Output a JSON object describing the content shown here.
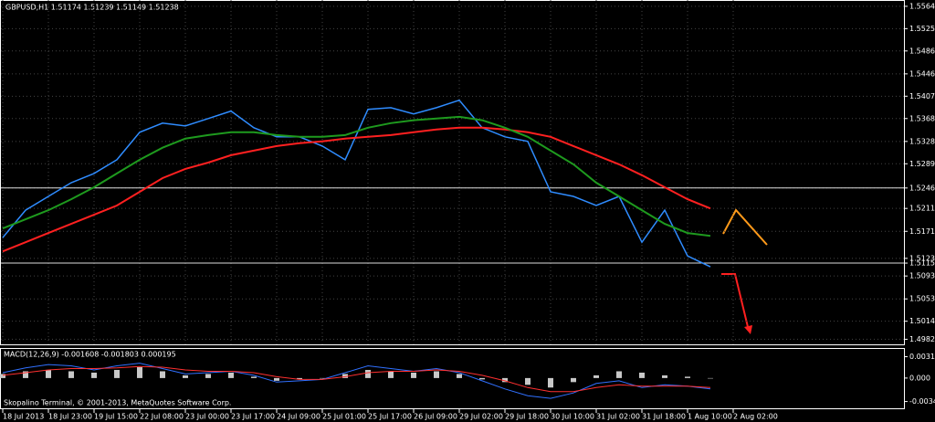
{
  "chart_data": [
    {
      "type": "line",
      "title": "GBPUSD,H1  1.51174 1.51239 1.51149 1.51238",
      "ylim": [
        1.4972,
        1.5575
      ],
      "yticks": [
        {
          "value": 1.5564,
          "label": "1.55640"
        },
        {
          "value": 1.5525,
          "label": "1.55250"
        },
        {
          "value": 1.5486,
          "label": "1.54860"
        },
        {
          "value": 1.5446,
          "label": "1.54460"
        },
        {
          "value": 1.5407,
          "label": "1.54070"
        },
        {
          "value": 1.5368,
          "label": "1.53680"
        },
        {
          "value": 1.5328,
          "label": "1.53280"
        },
        {
          "value": 1.5289,
          "label": "1.52890"
        },
        1.52467,
        {
          "value": 1.5211,
          "label": "1.52110"
        },
        {
          "value": 1.5171,
          "label": "1.51710"
        },
        1.51238,
        1.51155,
        {
          "value": 1.5093,
          "label": "1.50930"
        },
        {
          "value": 1.5053,
          "label": "1.50530"
        },
        {
          "value": 1.5014,
          "label": "1.50140"
        },
        1.49825
      ],
      "levels": [
        1.52467,
        1.51155
      ],
      "grid": true,
      "series": [
        {
          "color": "#2f8cff",
          "values": [
            1.516,
            1.5208,
            1.5232,
            1.5256,
            1.5272,
            1.5296,
            1.5344,
            1.536,
            1.5355,
            1.5368,
            1.5381,
            1.5352,
            1.5336,
            1.5336,
            1.532,
            1.5296,
            1.5384,
            1.5387,
            1.5376,
            1.5387,
            1.54,
            1.5352,
            1.5336,
            1.5328,
            1.524,
            1.5232,
            1.5216,
            1.5232,
            1.5152,
            1.5208,
            1.5128,
            1.5109,
            null
          ]
        },
        {
          "color": "#ff2020",
          "values": [
            1.5136,
            1.5152,
            1.5168,
            1.5184,
            1.52,
            1.5216,
            1.524,
            1.5264,
            1.528,
            1.5291,
            1.5304,
            1.5312,
            1.532,
            1.5325,
            1.5328,
            1.5333,
            1.5336,
            1.5339,
            1.5344,
            1.5349,
            1.5352,
            1.5352,
            1.5349,
            1.5344,
            1.5336,
            1.532,
            1.5304,
            1.5288,
            1.5269,
            1.5248,
            1.5227,
            1.5211,
            null
          ]
        },
        {
          "color": "#1e9a1e",
          "values": [
            1.5176,
            1.5192,
            1.5208,
            1.5227,
            1.5248,
            1.5272,
            1.5296,
            1.5317,
            1.5333,
            1.5339,
            1.5344,
            1.5344,
            1.5339,
            1.5336,
            1.5336,
            1.5339,
            1.5352,
            1.536,
            1.5365,
            1.5368,
            1.5371,
            1.5365,
            1.5352,
            1.5336,
            1.5312,
            1.5288,
            1.5256,
            1.5232,
            1.5208,
            1.5184,
            1.5168,
            1.5163,
            null
          ]
        }
      ]
    },
    {
      "type": "macd",
      "title": "MACD(12,26,9) -0.001608 -0.001803 0.000195",
      "footer": "Skopalino Terminal, © 2001-2013, MetaQuotes Software Corp.",
      "ylim": [
        -0.0046,
        0.0043
      ],
      "yticks": [
        0.003154,
        {
          "value": 0,
          "label": "0.000"
        },
        -0.003464
      ],
      "categories": [
        "18 Jul 2013",
        null,
        "18 Jul 23:00",
        null,
        "19 Jul 15:00",
        null,
        "22 Jul 08:00",
        null,
        "23 Jul 00:00",
        null,
        "23 Jul 17:00",
        null,
        "24 Jul 09:00",
        null,
        "25 Jul 01:00",
        null,
        "25 Jul 17:00",
        null,
        "26 Jul 09:00",
        null,
        "29 Jul 02:00",
        null,
        "29 Jul 18:00",
        null,
        "30 Jul 10:00",
        null,
        "31 Jul 02:00",
        null,
        "31 Jul 18:00",
        null,
        "1 Aug 10:00",
        null,
        "2 Aug 02:00"
      ],
      "histogram": {
        "color": "#c8c8c8",
        "values": [
          0.0006,
          0.001,
          0.0012,
          0.001,
          0.0008,
          0.0012,
          0.0016,
          0.001,
          0.0004,
          0.0006,
          0.0008,
          0.0002,
          -0.0004,
          -0.0002,
          0.0,
          0.0006,
          0.0012,
          0.001,
          0.0008,
          0.001,
          0.0006,
          -0.0002,
          -0.0006,
          -0.001,
          -0.0014,
          -0.0006,
          0.0004,
          0.001,
          0.0008,
          0.0004,
          0.0002,
          0.0,
          null
        ]
      },
      "series": [
        {
          "color": "#3070ff",
          "values": [
            0.0008,
            0.0015,
            0.002,
            0.0018,
            0.0012,
            0.0018,
            0.0022,
            0.0014,
            0.0006,
            0.0008,
            0.001,
            0.0004,
            -0.0006,
            -0.0004,
            -0.0002,
            0.0008,
            0.0018,
            0.0014,
            0.001,
            0.0014,
            0.0008,
            -0.0004,
            -0.0016,
            -0.0026,
            -0.003,
            -0.0022,
            -0.0008,
            -0.0004,
            -0.0014,
            -0.001,
            -0.0012,
            -0.0016,
            null
          ]
        },
        {
          "color": "#ff3030",
          "values": [
            0.0004,
            0.0008,
            0.0012,
            0.0014,
            0.0014,
            0.0015,
            0.0017,
            0.0016,
            0.0012,
            0.001,
            0.001,
            0.0008,
            0.0002,
            -0.0002,
            -0.0002,
            0.0002,
            0.0008,
            0.001,
            0.001,
            0.0012,
            0.001,
            0.0004,
            -0.0004,
            -0.0014,
            -0.002,
            -0.002,
            -0.0014,
            -0.001,
            -0.0012,
            -0.0012,
            -0.0012,
            -0.0014,
            null
          ]
        }
      ]
    }
  ]
}
